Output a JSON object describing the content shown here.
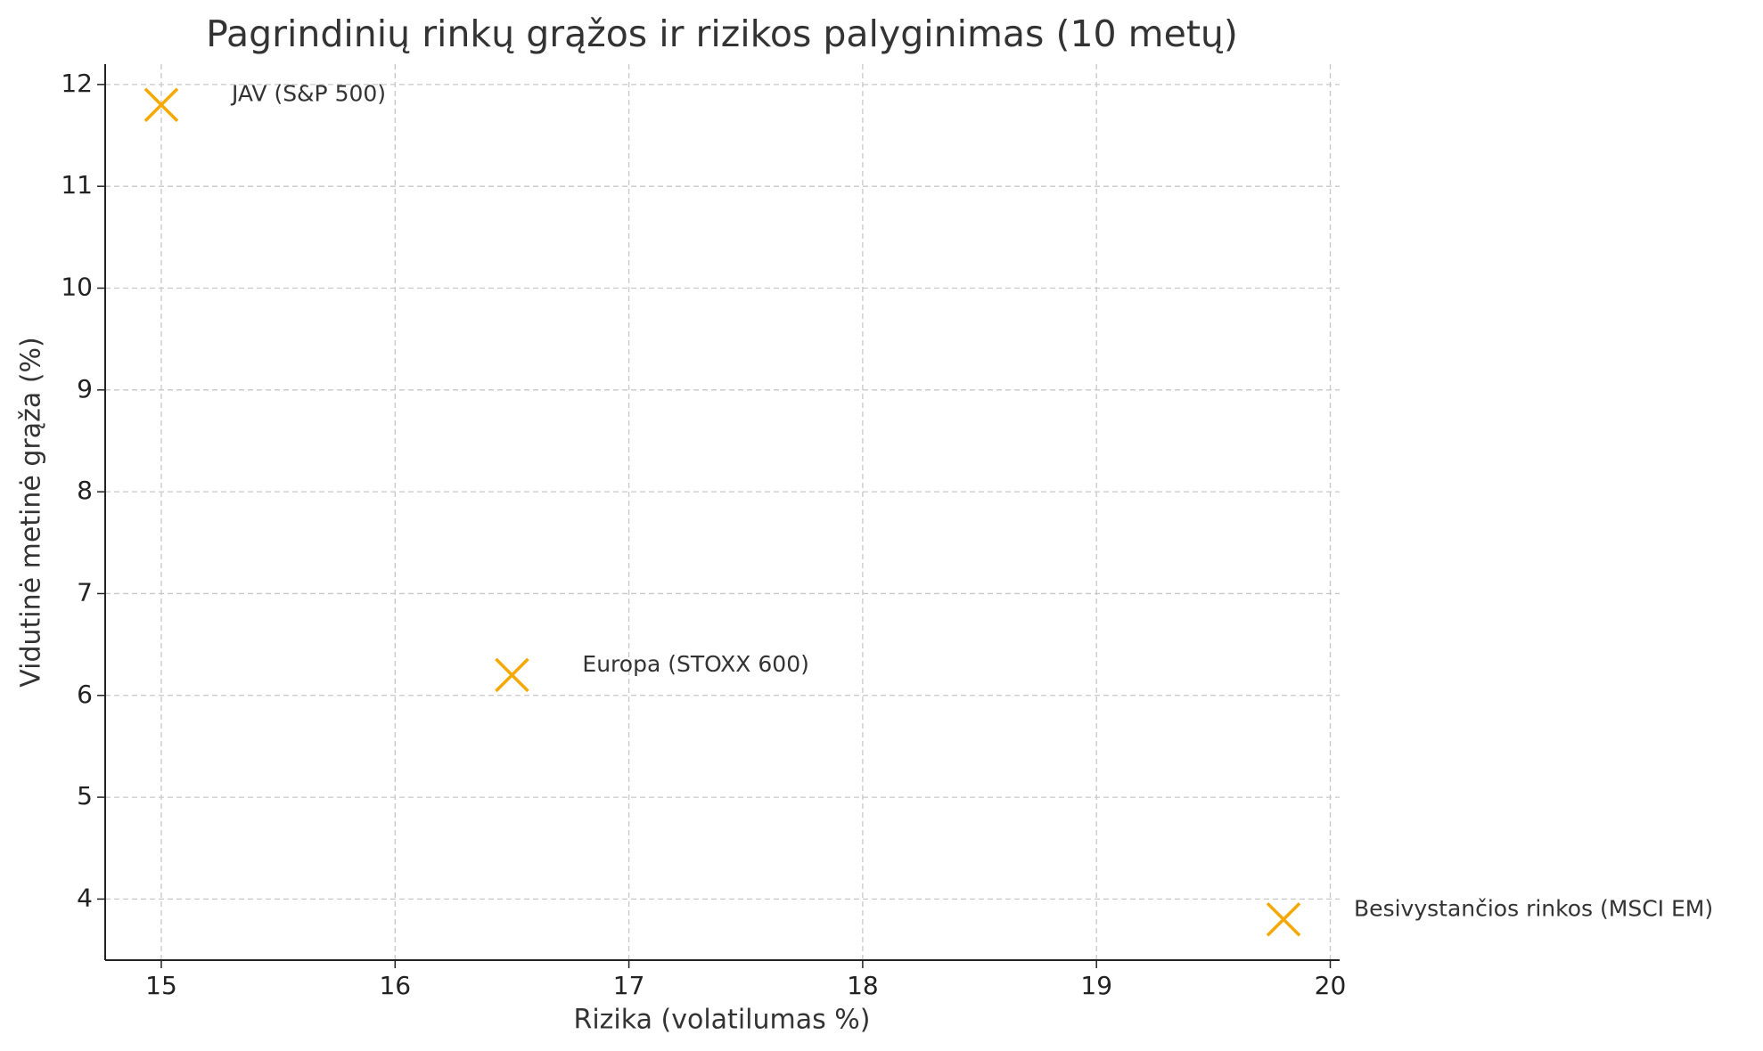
{
  "chart_data": {
    "type": "scatter",
    "title": "Pagrindinių rinkų grąžos ir rizikos palyginimas (10 metų)",
    "x_label": "Rizika (volatilumas %)",
    "y_label": "Vidutinė metinė grąža (%)",
    "x": [
      15,
      16.5,
      19.8
    ],
    "values": [
      11.8,
      6.2,
      3.8
    ],
    "labels": [
      "JAV (S&P 500)",
      "Europa (STOXX 600)",
      "Besivystančios rinkos (MSCI EM)"
    ],
    "color": "#f5a800",
    "marker": "x",
    "xlim": [
      14.76,
      20.04
    ],
    "xticks": [
      15,
      16,
      17,
      18,
      19,
      20
    ],
    "ylim": [
      3.4,
      12.2
    ],
    "yticks": [
      4,
      5,
      6,
      7,
      8,
      9,
      10,
      11,
      12
    ],
    "grid": true
  }
}
